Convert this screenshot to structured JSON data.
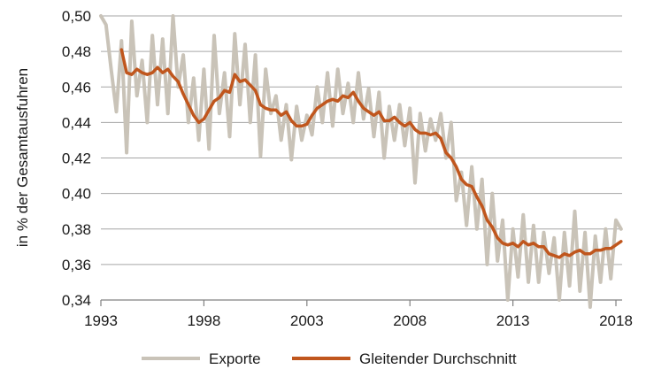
{
  "chart_data": {
    "type": "line",
    "ylabel": "in % der Gesamtausfuhren",
    "xlim": [
      1993,
      2018.3
    ],
    "ylim": [
      0.34,
      0.5
    ],
    "x_ticks": [
      1993,
      1998,
      2003,
      2008,
      2013,
      2018
    ],
    "x_tick_labels": [
      "1993",
      "1998",
      "2003",
      "2008",
      "2013",
      "2018"
    ],
    "y_ticks": [
      0.34,
      0.36,
      0.38,
      0.4,
      0.42,
      0.44,
      0.46,
      0.48,
      0.5
    ],
    "y_tick_labels": [
      "0,34",
      "0,36",
      "0,38",
      "0,40",
      "0,42",
      "0,44",
      "0,46",
      "0,48",
      "0,50"
    ],
    "grid": "horizontal",
    "legend_position": "bottom",
    "colors": {
      "Exporte": "#c9c3b8",
      "Gleitender Durchschnitt": "#c0561d",
      "grid": "#a6a6a6",
      "axis": "#808080"
    },
    "series": [
      {
        "name": "Exporte",
        "x": [
          1993.0,
          1993.25,
          1993.5,
          1993.75,
          1994.0,
          1994.25,
          1994.5,
          1994.75,
          1995.0,
          1995.25,
          1995.5,
          1995.75,
          1996.0,
          1996.25,
          1996.5,
          1996.75,
          1997.0,
          1997.25,
          1997.5,
          1997.75,
          1998.0,
          1998.25,
          1998.5,
          1998.75,
          1999.0,
          1999.25,
          1999.5,
          1999.75,
          2000.0,
          2000.25,
          2000.5,
          2000.75,
          2001.0,
          2001.25,
          2001.5,
          2001.75,
          2002.0,
          2002.25,
          2002.5,
          2002.75,
          2003.0,
          2003.25,
          2003.5,
          2003.75,
          2004.0,
          2004.25,
          2004.5,
          2004.75,
          2005.0,
          2005.25,
          2005.5,
          2005.75,
          2006.0,
          2006.25,
          2006.5,
          2006.75,
          2007.0,
          2007.25,
          2007.5,
          2007.75,
          2008.0,
          2008.25,
          2008.5,
          2008.75,
          2009.0,
          2009.25,
          2009.5,
          2009.75,
          2010.0,
          2010.25,
          2010.5,
          2010.75,
          2011.0,
          2011.25,
          2011.5,
          2011.75,
          2012.0,
          2012.25,
          2012.5,
          2012.75,
          2013.0,
          2013.25,
          2013.5,
          2013.75,
          2014.0,
          2014.25,
          2014.5,
          2014.75,
          2015.0,
          2015.25,
          2015.5,
          2015.75,
          2016.0,
          2016.25,
          2016.5,
          2016.75,
          2017.0,
          2017.25,
          2017.5,
          2017.75,
          2018.0,
          2018.25
        ],
        "values": [
          0.5,
          0.495,
          0.47,
          0.446,
          0.486,
          0.423,
          0.497,
          0.455,
          0.475,
          0.44,
          0.489,
          0.45,
          0.487,
          0.445,
          0.5,
          0.46,
          0.478,
          0.44,
          0.465,
          0.43,
          0.47,
          0.425,
          0.489,
          0.445,
          0.468,
          0.432,
          0.49,
          0.45,
          0.484,
          0.44,
          0.478,
          0.421,
          0.47,
          0.445,
          0.455,
          0.43,
          0.45,
          0.419,
          0.449,
          0.43,
          0.444,
          0.433,
          0.46,
          0.44,
          0.468,
          0.438,
          0.47,
          0.445,
          0.462,
          0.44,
          0.468,
          0.442,
          0.459,
          0.432,
          0.457,
          0.42,
          0.449,
          0.43,
          0.45,
          0.427,
          0.448,
          0.406,
          0.445,
          0.424,
          0.442,
          0.43,
          0.445,
          0.42,
          0.44,
          0.396,
          0.412,
          0.382,
          0.415,
          0.38,
          0.408,
          0.36,
          0.4,
          0.362,
          0.385,
          0.34,
          0.38,
          0.353,
          0.388,
          0.35,
          0.382,
          0.35,
          0.378,
          0.355,
          0.375,
          0.34,
          0.378,
          0.348,
          0.39,
          0.345,
          0.378,
          0.336,
          0.376,
          0.35,
          0.38,
          0.352,
          0.385,
          0.38
        ]
      },
      {
        "name": "Gleitender Durchschnitt",
        "x": [
          1994.0,
          1994.25,
          1994.5,
          1994.75,
          1995.0,
          1995.25,
          1995.5,
          1995.75,
          1996.0,
          1996.25,
          1996.5,
          1996.75,
          1997.0,
          1997.25,
          1997.5,
          1997.75,
          1998.0,
          1998.25,
          1998.5,
          1998.75,
          1999.0,
          1999.25,
          1999.5,
          1999.75,
          2000.0,
          2000.25,
          2000.5,
          2000.75,
          2001.0,
          2001.25,
          2001.5,
          2001.75,
          2002.0,
          2002.25,
          2002.5,
          2002.75,
          2003.0,
          2003.25,
          2003.5,
          2003.75,
          2004.0,
          2004.25,
          2004.5,
          2004.75,
          2005.0,
          2005.25,
          2005.5,
          2005.75,
          2006.0,
          2006.25,
          2006.5,
          2006.75,
          2007.0,
          2007.25,
          2007.5,
          2007.75,
          2008.0,
          2008.25,
          2008.5,
          2008.75,
          2009.0,
          2009.25,
          2009.5,
          2009.75,
          2010.0,
          2010.25,
          2010.5,
          2010.75,
          2011.0,
          2011.25,
          2011.5,
          2011.75,
          2012.0,
          2012.25,
          2012.5,
          2012.75,
          2013.0,
          2013.25,
          2013.5,
          2013.75,
          2014.0,
          2014.25,
          2014.5,
          2014.75,
          2015.0,
          2015.25,
          2015.5,
          2015.75,
          2016.0,
          2016.25,
          2016.5,
          2016.75,
          2017.0,
          2017.25,
          2017.5,
          2017.75,
          2018.0,
          2018.25
        ],
        "values": [
          0.481,
          0.468,
          0.467,
          0.47,
          0.468,
          0.467,
          0.468,
          0.471,
          0.468,
          0.47,
          0.466,
          0.463,
          0.456,
          0.45,
          0.444,
          0.44,
          0.442,
          0.447,
          0.452,
          0.454,
          0.458,
          0.457,
          0.467,
          0.463,
          0.464,
          0.461,
          0.458,
          0.45,
          0.448,
          0.447,
          0.447,
          0.444,
          0.446,
          0.441,
          0.438,
          0.438,
          0.439,
          0.444,
          0.448,
          0.45,
          0.452,
          0.453,
          0.452,
          0.455,
          0.454,
          0.457,
          0.452,
          0.448,
          0.446,
          0.444,
          0.446,
          0.441,
          0.441,
          0.443,
          0.44,
          0.438,
          0.44,
          0.436,
          0.434,
          0.434,
          0.433,
          0.434,
          0.431,
          0.423,
          0.42,
          0.415,
          0.408,
          0.405,
          0.404,
          0.398,
          0.393,
          0.385,
          0.381,
          0.375,
          0.372,
          0.371,
          0.372,
          0.37,
          0.373,
          0.371,
          0.372,
          0.37,
          0.37,
          0.366,
          0.365,
          0.364,
          0.366,
          0.365,
          0.367,
          0.368,
          0.366,
          0.366,
          0.368,
          0.368,
          0.369,
          0.369,
          0.371,
          0.373
        ]
      }
    ]
  }
}
